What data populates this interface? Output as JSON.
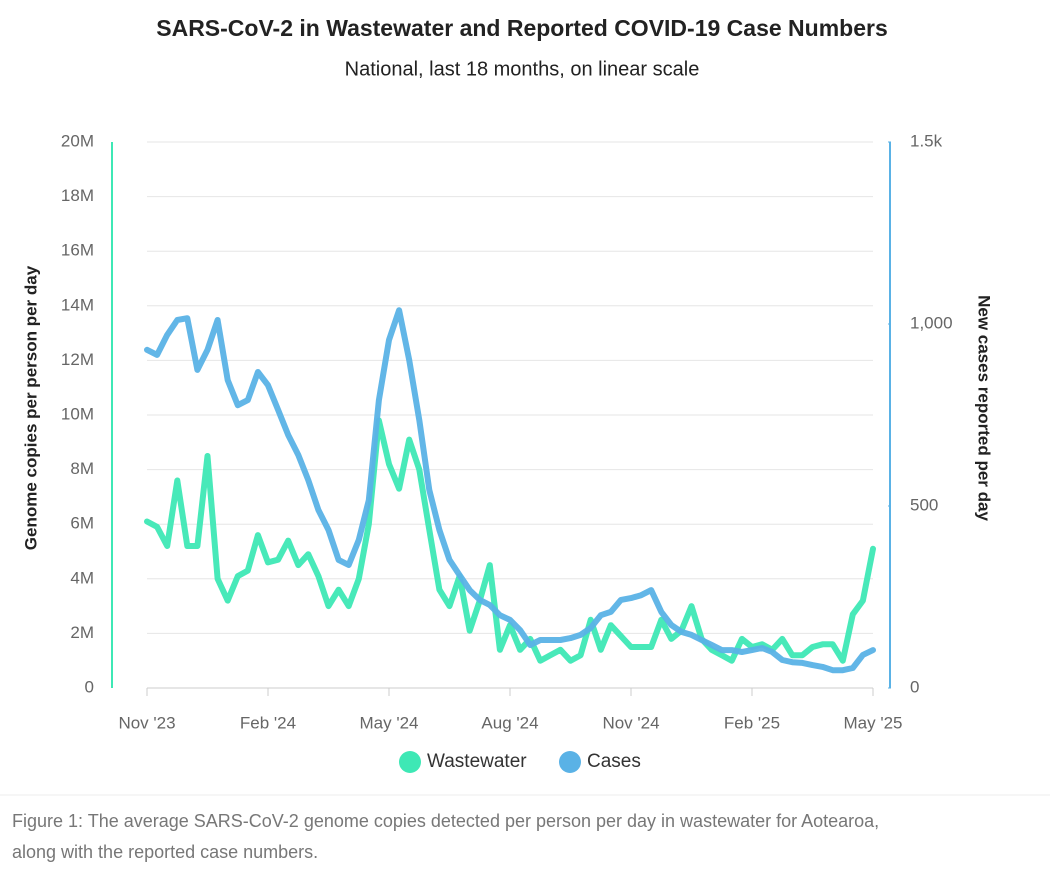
{
  "chart_data": {
    "type": "line",
    "title": "SARS-CoV-2 in Wastewater and Reported COVID-19 Case Numbers",
    "subtitle": "National, last 18 months, on linear scale",
    "y_label": "Genome copies per person per day",
    "y2_label": "New cases reported per day",
    "caption": [
      "Figure 1: The average SARS-CoV-2 genome copies detected per person per day in wastewater for Aotearoa,",
      "along with the reported case numbers."
    ],
    "categories": [
      "Nov '23",
      null,
      null,
      null,
      null,
      null,
      null,
      null,
      null,
      null,
      null,
      null,
      "Feb '24",
      null,
      null,
      null,
      null,
      null,
      null,
      null,
      null,
      null,
      null,
      null,
      "May '24",
      null,
      null,
      null,
      null,
      null,
      null,
      null,
      null,
      null,
      null,
      null,
      "Aug '24",
      null,
      null,
      null,
      null,
      null,
      null,
      null,
      null,
      null,
      null,
      null,
      "Nov '24",
      null,
      null,
      null,
      null,
      null,
      null,
      null,
      null,
      null,
      null,
      null,
      "Feb '25",
      null,
      null,
      null,
      null,
      null,
      null,
      null,
      null,
      null,
      null,
      null,
      "May '25"
    ],
    "series": [
      {
        "name": "Wastewater",
        "color": "#3ee8b5",
        "axis": "y",
        "values": [
          6100000,
          5900000,
          5200000,
          7600000,
          5200000,
          5200000,
          8500000,
          4000000,
          3200000,
          4100000,
          4300000,
          5600000,
          4600000,
          4700000,
          5400000,
          4500000,
          4900000,
          4100000,
          3000000,
          3600000,
          3000000,
          4000000,
          6000000,
          9800000,
          8200000,
          7300000,
          9100000,
          8000000,
          5800000,
          3600000,
          3000000,
          4100000,
          2100000,
          3200000,
          4500000,
          1400000,
          2300000,
          1400000,
          1800000,
          1000000,
          1200000,
          1400000,
          1000000,
          1200000,
          2500000,
          1400000,
          2300000,
          1900000,
          1500000,
          1500000,
          1500000,
          2500000,
          1800000,
          2100000,
          3000000,
          1800000,
          1400000,
          1200000,
          1000000,
          1800000,
          1500000,
          1600000,
          1400000,
          1800000,
          1200000,
          1200000,
          1500000,
          1600000,
          1600000,
          1000000,
          2700000,
          3200000,
          5100000
        ]
      },
      {
        "name": "Cases",
        "color": "#5ab2e6",
        "axis": "y2",
        "values": [
          929,
          915,
          970,
          1011,
          1016,
          874,
          929,
          1011,
          846,
          777,
          791,
          868,
          832,
          764,
          695,
          640,
          571,
          489,
          434,
          352,
          338,
          407,
          516,
          791,
          956,
          1038,
          901,
          736,
          544,
          434,
          352,
          310,
          269,
          242,
          228,
          200,
          187,
          159,
          118,
          132,
          132,
          132,
          137,
          146,
          165,
          200,
          209,
          242,
          247,
          255,
          269,
          209,
          173,
          154,
          146,
          132,
          118,
          104,
          104,
          99,
          104,
          110,
          99,
          77,
          71,
          69,
          63,
          58,
          49,
          49,
          55,
          91,
          104
        ]
      }
    ],
    "ylim": [
      0,
      20000000
    ],
    "yticks": [
      0,
      {
        "value": 2000000,
        "label": "2M"
      },
      {
        "value": 4000000,
        "label": "4M"
      },
      {
        "value": 6000000,
        "label": "6M"
      },
      {
        "value": 8000000,
        "label": "8M"
      },
      {
        "value": 10000000,
        "label": "10M"
      },
      {
        "value": 12000000,
        "label": "12M"
      },
      {
        "value": 14000000,
        "label": "14M"
      },
      {
        "value": 16000000,
        "label": "16M"
      },
      {
        "value": 18000000,
        "label": "18M"
      },
      {
        "value": 20000000,
        "label": "20M"
      }
    ],
    "y2lim": [
      0,
      1500
    ],
    "y2ticks": [
      0,
      500,
      {
        "value": 1000,
        "label": "1,000"
      },
      {
        "value": 1500,
        "label": "1.5k"
      }
    ],
    "grid": true,
    "legend": "bottom"
  }
}
